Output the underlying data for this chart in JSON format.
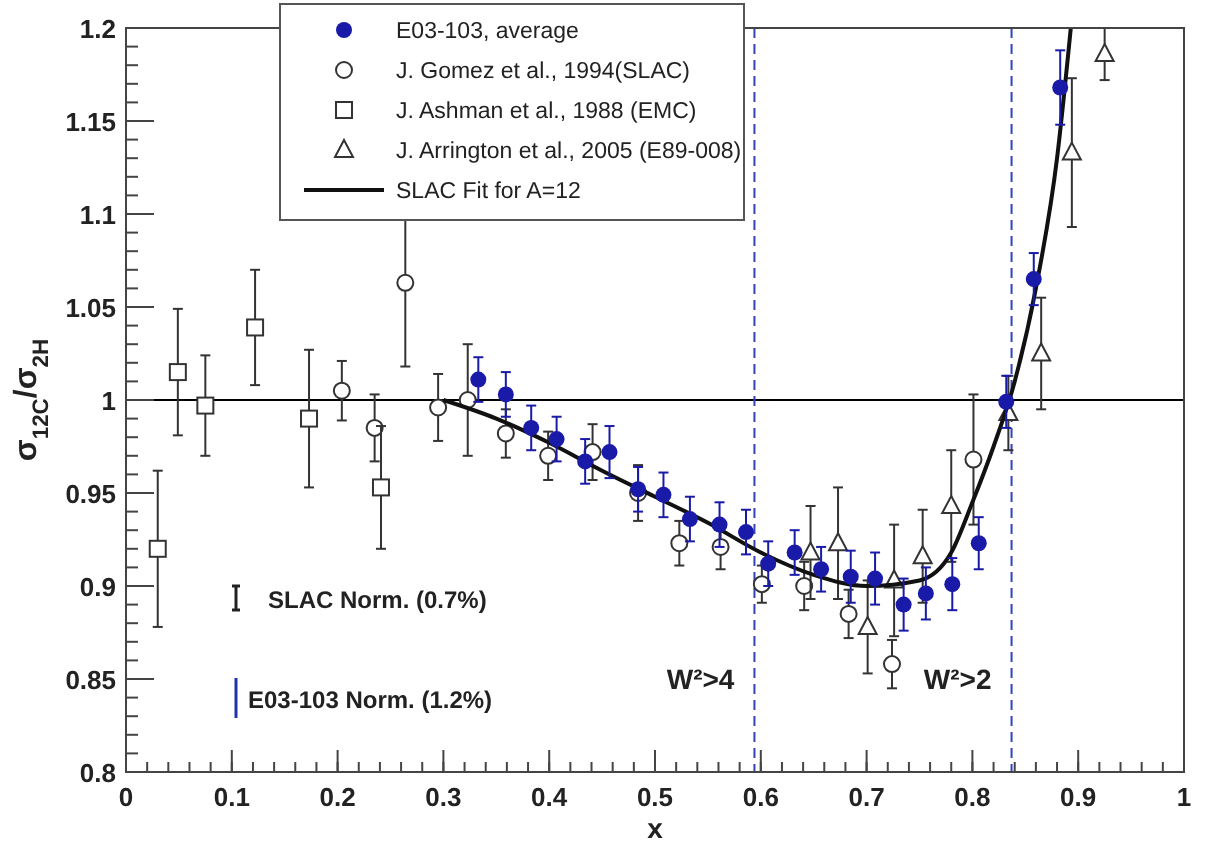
{
  "chart_data": {
    "type": "scatter",
    "xlabel": "x",
    "ylabel": "σ$_{12C}$/σ$_{2H}$",
    "xlim": [
      0,
      1
    ],
    "ylim": [
      0.8,
      1.2
    ],
    "xticks": [
      0,
      0.1,
      0.2,
      0.3,
      0.4,
      0.5,
      0.6,
      0.7,
      0.8,
      0.9,
      1
    ],
    "yticks": [
      0.8,
      0.85,
      0.9,
      0.95,
      1,
      1.05,
      1.1,
      1.15,
      1.2
    ],
    "grid": false,
    "legend": "top left",
    "series": [
      {
        "name": "E03-103, average",
        "marker": "circle",
        "color": "#1a1aa8",
        "x": [
          0.333,
          0.359,
          0.383,
          0.407,
          0.434,
          0.457,
          0.484,
          0.508,
          0.533,
          0.561,
          0.586,
          0.607,
          0.632,
          0.657,
          0.685,
          0.708,
          0.735,
          0.756,
          0.781,
          0.806,
          0.832,
          0.858,
          0.883
        ],
        "values": [
          1.011,
          1.003,
          0.985,
          0.979,
          0.967,
          0.972,
          0.952,
          0.949,
          0.936,
          0.933,
          0.929,
          0.912,
          0.918,
          0.909,
          0.905,
          0.904,
          0.89,
          0.896,
          0.901,
          0.923,
          0.999,
          1.065,
          1.168
        ],
        "errors": [
          0.012,
          0.012,
          0.012,
          0.012,
          0.012,
          0.014,
          0.012,
          0.012,
          0.012,
          0.012,
          0.012,
          0.012,
          0.012,
          0.012,
          0.014,
          0.014,
          0.014,
          0.014,
          0.014,
          0.014,
          0.014,
          0.014,
          0.02
        ]
      },
      {
        "name": "J. Gomez et al., 1994(SLAC)",
        "marker": "circle",
        "color": "#333333",
        "x": [
          0.204,
          0.235,
          0.264,
          0.295,
          0.323,
          0.359,
          0.399,
          0.441,
          0.484,
          0.523,
          0.562,
          0.601,
          0.641,
          0.683,
          0.724,
          0.801
        ],
        "values": [
          1.005,
          0.985,
          1.063,
          0.996,
          1.0,
          0.982,
          0.97,
          0.972,
          0.95,
          0.923,
          0.921,
          0.901,
          0.9,
          0.885,
          0.858,
          0.968
        ],
        "errors": [
          0.016,
          0.018,
          0.045,
          0.018,
          0.03,
          0.013,
          0.013,
          0.015,
          0.015,
          0.012,
          0.012,
          0.01,
          0.013,
          0.013,
          0.013,
          0.035
        ]
      },
      {
        "name": "J. Ashman et al., 1988 (EMC)",
        "marker": "square",
        "color": "#333333",
        "x": [
          0.03,
          0.049,
          0.075,
          0.122,
          0.173,
          0.241
        ],
        "values": [
          0.92,
          1.015,
          0.997,
          1.039,
          0.99,
          0.953
        ],
        "errors": [
          0.042,
          0.034,
          0.027,
          0.031,
          0.037,
          0.033
        ]
      },
      {
        "name": "J. Arrington et al., 2005 (E89-008)",
        "marker": "triangle",
        "color": "#333333",
        "x": [
          0.647,
          0.673,
          0.701,
          0.726,
          0.753,
          0.78,
          0.834,
          0.865,
          0.894,
          0.925
        ],
        "values": [
          0.918,
          0.923,
          0.878,
          0.903,
          0.916,
          0.943,
          0.993,
          1.025,
          1.133,
          1.186
        ],
        "errors": [
          0.025,
          0.03,
          0.025,
          0.03,
          0.025,
          0.03,
          0.02,
          0.03,
          0.04,
          0.014
        ]
      },
      {
        "name": "SLAC Fit for A=12",
        "type": "line",
        "marker": "none",
        "color": "#111111",
        "x": [
          0.3,
          0.35,
          0.4,
          0.45,
          0.5,
          0.55,
          0.6,
          0.65,
          0.7,
          0.75,
          0.78,
          0.8,
          0.82,
          0.84,
          0.86,
          0.88,
          0.893
        ],
        "values": [
          1.0,
          0.99,
          0.977,
          0.962,
          0.948,
          0.934,
          0.918,
          0.906,
          0.9,
          0.903,
          0.918,
          0.945,
          0.975,
          1.01,
          1.06,
          1.13,
          1.2
        ]
      }
    ],
    "ref_lines": [
      {
        "axis": "y",
        "value": 1,
        "color": "#000000",
        "line_style": "solid"
      },
      {
        "axis": "x",
        "value": 0.594,
        "label": "W²>4",
        "color": "#3344bb",
        "line_style": "dashed"
      },
      {
        "axis": "x",
        "value": 0.837,
        "label": "W²>2",
        "color": "#3344bb",
        "line_style": "dashed"
      }
    ],
    "annotations": [
      "SLAC Norm. (0.7%)",
      "E03-103 Norm. (1.2%)"
    ]
  }
}
